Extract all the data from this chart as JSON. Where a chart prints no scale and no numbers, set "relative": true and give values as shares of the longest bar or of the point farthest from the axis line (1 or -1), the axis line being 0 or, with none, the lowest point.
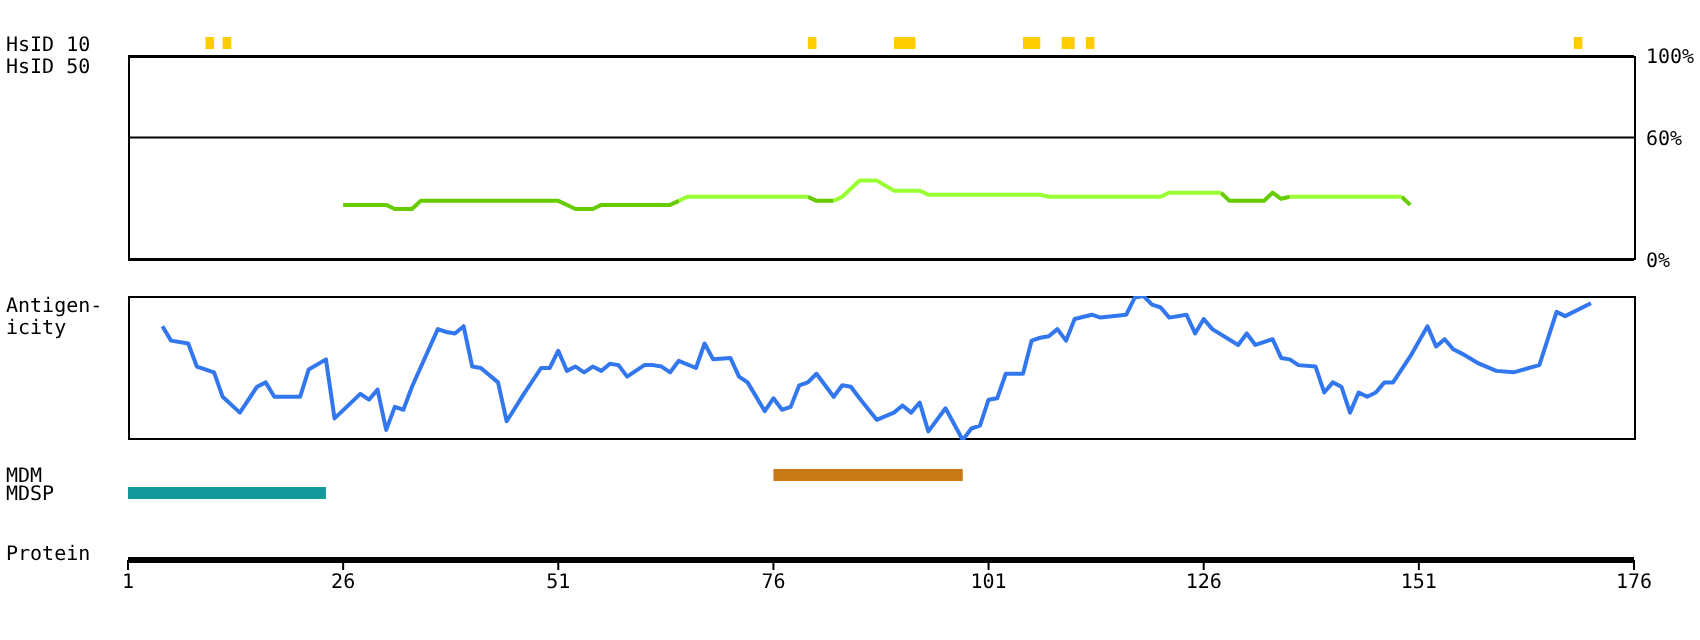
{
  "chart_data": [
    {
      "type": "bar",
      "orientation": "horizontal",
      "categories": [
        "HsID 10",
        "HsID 50"
      ],
      "xlim": [
        1,
        176
      ],
      "tick_labels": "y",
      "series": [
        {
          "color": "#ffcc00",
          "base": [
            10,
            null
          ],
          "values": [
            1,
            null
          ]
        },
        {
          "color": "#ffcc00",
          "base": [
            12,
            null
          ],
          "values": [
            1,
            null
          ]
        },
        {
          "color": "#ffcc00",
          "base": [
            80,
            null
          ],
          "values": [
            1,
            null
          ]
        },
        {
          "color": "#ffcc00",
          "base": [
            90,
            null
          ],
          "values": [
            2.5,
            null
          ]
        },
        {
          "color": "#ffcc00",
          "base": [
            105,
            null
          ],
          "values": [
            2,
            null
          ]
        },
        {
          "color": "#ffcc00",
          "base": [
            109.5,
            null
          ],
          "values": [
            1.5,
            null
          ]
        },
        {
          "color": "#ffcc00",
          "base": [
            112.3,
            null
          ],
          "values": [
            1,
            null
          ]
        },
        {
          "color": "#ffcc00",
          "base": [
            169,
            null
          ],
          "values": [
            1,
            null
          ]
        }
      ]
    },
    {
      "type": "line",
      "xlim": [
        1,
        176
      ],
      "ylim": [
        0,
        100
      ],
      "yticks": [
        {
          "value": 0,
          "label": "0%"
        },
        {
          "value": 60,
          "label": "60%"
        },
        {
          "value": 100,
          "label": "100%"
        }
      ],
      "grid": "y",
      "tick_labels": "y",
      "series": [
        {
          "color": "#66cc00",
          "x": [
            26,
            31,
            32,
            34,
            35,
            51,
            53,
            55,
            56,
            64,
            65,
            72,
            80,
            81,
            83,
            100,
            128,
            129,
            133,
            134,
            135,
            136,
            142,
            149,
            150
          ],
          "values": [
            27,
            27,
            25,
            25,
            29,
            29,
            25,
            25,
            27,
            27,
            29,
            null,
            31,
            29,
            29,
            null,
            33,
            29,
            29,
            33,
            30,
            31,
            null,
            31,
            27
          ]
        },
        {
          "color": "#99ff33",
          "x": [
            65,
            66,
            80,
            82,
            83,
            84,
            86,
            88,
            90,
            93,
            94,
            107,
            108,
            121,
            122,
            128,
            132,
            136,
            149
          ],
          "values": [
            29,
            31,
            31,
            null,
            29,
            31,
            39,
            39,
            34,
            34,
            32,
            32,
            31,
            31,
            33,
            33,
            null,
            31,
            31
          ]
        }
      ]
    },
    {
      "type": "line",
      "relative": true,
      "ylabel": "Antigen-\nicity",
      "xlim": [
        1,
        176
      ],
      "tick_labels": false,
      "series": [
        {
          "color": "#3377ee",
          "x": [
            5,
            6,
            8,
            9,
            11,
            12,
            14,
            16,
            17,
            18,
            21,
            22,
            24,
            25,
            28,
            29,
            30,
            31,
            32,
            33,
            34,
            37,
            38,
            39,
            40,
            41,
            42,
            44,
            45,
            47,
            49,
            50,
            51,
            52,
            53,
            54,
            55,
            56,
            57,
            58,
            59,
            61,
            62,
            63,
            64,
            65,
            67,
            68,
            69,
            71,
            72,
            73,
            75,
            76,
            77,
            78,
            79,
            80,
            81,
            83,
            84,
            85,
            86,
            88,
            90,
            91,
            92,
            93,
            94,
            96,
            98,
            99,
            100,
            101,
            102,
            103,
            105,
            106,
            107,
            108,
            109,
            110,
            111,
            113,
            114,
            117,
            118,
            119,
            120,
            121,
            122,
            124,
            125,
            126,
            127,
            130,
            131,
            132,
            134,
            135,
            136,
            137,
            139,
            140,
            141,
            142,
            143,
            144,
            145,
            146,
            147,
            148,
            149,
            150,
            152,
            153,
            154,
            155,
            156,
            158,
            160,
            162,
            165,
            167,
            168,
            170,
            171
          ],
          "values": [
            0.79,
            0.69,
            0.67,
            0.51,
            0.47,
            0.3,
            0.19,
            0.37,
            0.4,
            0.3,
            0.3,
            0.49,
            0.56,
            0.15,
            0.32,
            0.28,
            0.35,
            0.07,
            0.23,
            0.21,
            0.37,
            0.77,
            0.75,
            0.74,
            0.79,
            0.51,
            0.5,
            0.4,
            0.13,
            0.32,
            0.5,
            0.5,
            0.62,
            0.48,
            0.51,
            0.47,
            0.51,
            0.48,
            0.53,
            0.52,
            0.44,
            0.52,
            0.52,
            0.51,
            0.47,
            0.55,
            0.5,
            0.67,
            0.56,
            0.57,
            0.44,
            0.4,
            0.2,
            0.29,
            0.21,
            0.23,
            0.38,
            0.4,
            0.46,
            0.3,
            0.38,
            0.37,
            0.29,
            0.14,
            0.19,
            0.24,
            0.19,
            0.26,
            0.06,
            0.22,
            0,
            0.08,
            0.1,
            0.28,
            0.29,
            0.46,
            0.46,
            0.69,
            0.71,
            0.72,
            0.77,
            0.69,
            0.84,
            0.87,
            0.85,
            0.87,
            0.99,
            1,
            0.94,
            0.92,
            0.85,
            0.87,
            0.74,
            0.84,
            0.77,
            0.66,
            0.74,
            0.66,
            0.7,
            0.57,
            0.56,
            0.52,
            0.51,
            0.33,
            0.4,
            0.37,
            0.19,
            0.33,
            0.3,
            0.33,
            0.4,
            0.4,
            0.49,
            0.58,
            0.79,
            0.65,
            0.7,
            0.63,
            0.6,
            0.53,
            0.48,
            0.47,
            0.52,
            0.89,
            0.86,
            0.92,
            0.95
          ]
        }
      ]
    },
    {
      "type": "bar",
      "orientation": "horizontal",
      "categories": [
        "MDM",
        "MDSP"
      ],
      "base": [
        76,
        1
      ],
      "values": [
        22,
        23
      ],
      "colors": [
        "#c87814",
        "#129a9a"
      ],
      "xlim": [
        1,
        176
      ],
      "xticks": [
        1,
        26,
        51,
        76,
        101,
        126,
        151,
        176
      ],
      "xlabel": "Protein"
    }
  ]
}
